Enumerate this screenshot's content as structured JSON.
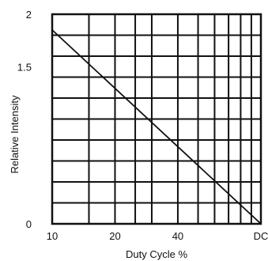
{
  "chart_data": {
    "type": "line",
    "title": "",
    "xlabel": "Duty Cycle %",
    "ylabel": "Relative Intensity",
    "x_scale": "log",
    "xlim": [
      10,
      100
    ],
    "ylim": [
      0,
      2
    ],
    "grid": true,
    "x_tick_labels": [
      {
        "value": 10,
        "label": "10"
      },
      {
        "value": 20,
        "label": "20"
      },
      {
        "value": 40,
        "label": "40"
      },
      {
        "value": 100,
        "label": "DC"
      }
    ],
    "y_tick_labels": [
      {
        "value": 0,
        "label": "0"
      },
      {
        "value": 1.5,
        "label": "1.5"
      },
      {
        "value": 2,
        "label": "2"
      }
    ],
    "x_gridlines": [
      10,
      15,
      20,
      25,
      30,
      40,
      50,
      60,
      70,
      80,
      90,
      100
    ],
    "y_gridlines": [
      0,
      0.2,
      0.4,
      0.6,
      0.8,
      1.0,
      1.2,
      1.4,
      1.6,
      1.8,
      2.0
    ],
    "series": [
      {
        "x": [
          10,
          100
        ],
        "y": [
          1.85,
          0
        ]
      }
    ]
  }
}
